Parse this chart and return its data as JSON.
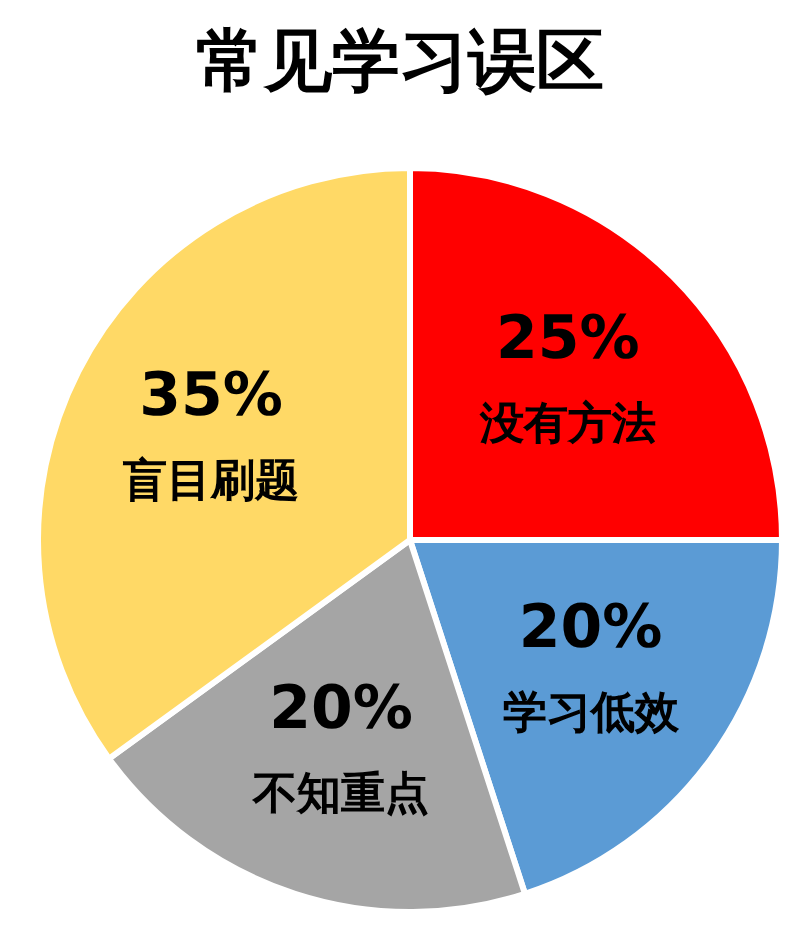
{
  "chart_data": {
    "type": "pie",
    "title": "常见学习误区",
    "categories": [
      "没有方法",
      "学习低效",
      "不知重点",
      "盲目刷题"
    ],
    "values": [
      25,
      20,
      20,
      35
    ],
    "value_labels": [
      "25%",
      "20%",
      "20%",
      "35%"
    ],
    "colors": [
      "#ff0000",
      "#5b9bd5",
      "#a5a5a5",
      "#ffd966"
    ]
  }
}
